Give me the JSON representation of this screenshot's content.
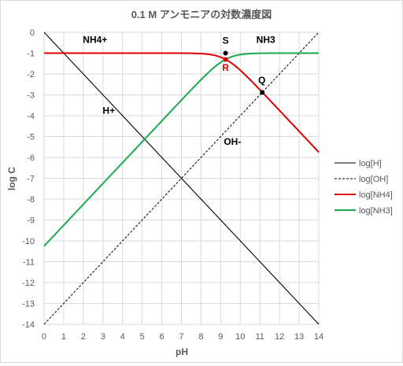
{
  "chart_data": {
    "type": "line",
    "title": "0.1 M アンモニアの対数濃度図",
    "xlabel": "pH",
    "ylabel": "log C",
    "xlim": [
      0,
      14
    ],
    "ylim": [
      -14,
      0
    ],
    "x_ticks": [
      "0",
      "1",
      "2",
      "3",
      "4",
      "5",
      "6",
      "7",
      "8",
      "9",
      "10",
      "11",
      "12",
      "13",
      "14"
    ],
    "y_ticks": [
      "0",
      "-1",
      "-2",
      "-3",
      "-4",
      "-5",
      "-6",
      "-7",
      "-8",
      "-9",
      "-10",
      "-11",
      "-12",
      "-13",
      "-14"
    ],
    "grid": true,
    "legend_position": "right",
    "pKa": 9.25,
    "total_log_concentration": -1,
    "series": [
      {
        "name": "log[H]",
        "color": "#000000",
        "dash": "solid",
        "formula": "-pH"
      },
      {
        "name": "log[OH]",
        "color": "#000000",
        "dash": "dashed",
        "formula": "pH-14"
      },
      {
        "name": "log[NH4]",
        "color": "#e00000",
        "dash": "solid",
        "formula": "log(0.1*[H]/([H]+Ka))"
      },
      {
        "name": "log[NH3]",
        "color": "#1aaa50",
        "dash": "solid",
        "formula": "log(0.1*Ka/([H]+Ka))"
      }
    ],
    "annotations": [
      {
        "text": "NH4+",
        "x": 2.6,
        "y": -0.5,
        "color": "#000000"
      },
      {
        "text": "NH3",
        "x": 11.3,
        "y": -0.5,
        "color": "#000000"
      },
      {
        "text": "H+",
        "x": 3.3,
        "y": -3.9,
        "color": "#000000"
      },
      {
        "text": "OH-",
        "x": 9.6,
        "y": -5.4,
        "color": "#000000"
      },
      {
        "text": "S",
        "x": 9.25,
        "y": -0.55,
        "color": "#000000"
      },
      {
        "text": "R",
        "x": 9.25,
        "y": -1.85,
        "color": "#e00000"
      },
      {
        "text": "Q",
        "x": 11.1,
        "y": -2.45,
        "color": "#000000"
      }
    ],
    "points": [
      {
        "name": "S",
        "x": 9.25,
        "y": -1.0,
        "color": "#000000"
      },
      {
        "name": "R",
        "x": 9.25,
        "y": -1.3,
        "color": "#e00000"
      },
      {
        "name": "Q",
        "x": 11.12,
        "y": -2.88,
        "color": "#000000"
      }
    ]
  }
}
